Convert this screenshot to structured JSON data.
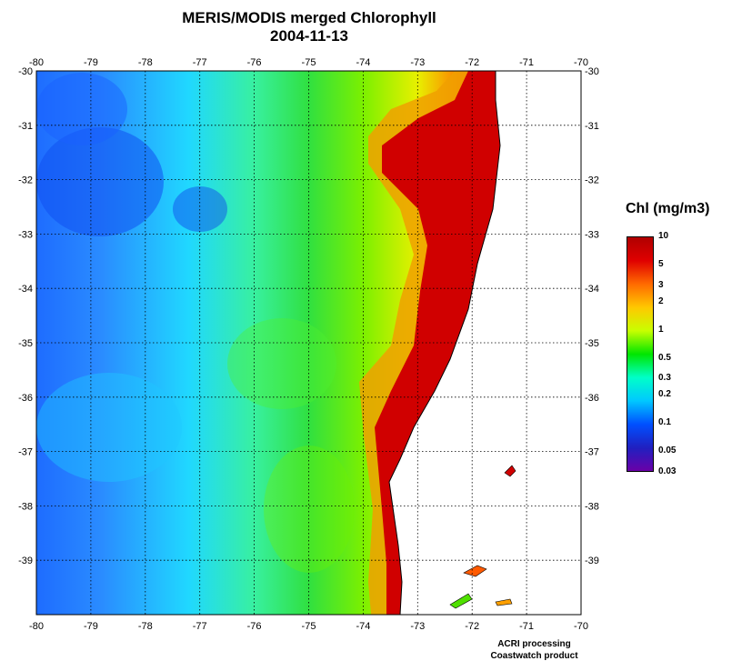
{
  "title": {
    "line1": "MERIS/MODIS merged Chlorophyll",
    "line2": "2004-11-13"
  },
  "map": {
    "lon_ticks": [
      "-80",
      "-79",
      "-78",
      "-77",
      "-76",
      "-75",
      "-74",
      "-73",
      "-72",
      "-71",
      "-70"
    ],
    "lat_ticks": [
      "-30",
      "-31",
      "-32",
      "-33",
      "-34",
      "-35",
      "-36",
      "-37",
      "-38",
      "-39"
    ],
    "lon_range": [
      -80,
      -70
    ],
    "lat_range": [
      -30,
      -40
    ],
    "land_color": "#ffffff",
    "coastline_color": "#000000",
    "grid": "dotted"
  },
  "legend": {
    "title": "Chl (mg/m3)",
    "labels": [
      "10",
      "5",
      "3",
      "2",
      "1",
      "0.5",
      "0.3",
      "0.2",
      "0.1",
      "0.05",
      "0.03"
    ],
    "colors": [
      "#b00000",
      "#e00000",
      "#ff6a00",
      "#ffc800",
      "#c8ff00",
      "#00e600",
      "#00ffc8",
      "#00c8ff",
      "#0050ff",
      "#2020c0",
      "#6a00a8"
    ],
    "scale": "log"
  },
  "credit": {
    "line1": "ACRI processing",
    "line2": "Coastwatch product"
  }
}
